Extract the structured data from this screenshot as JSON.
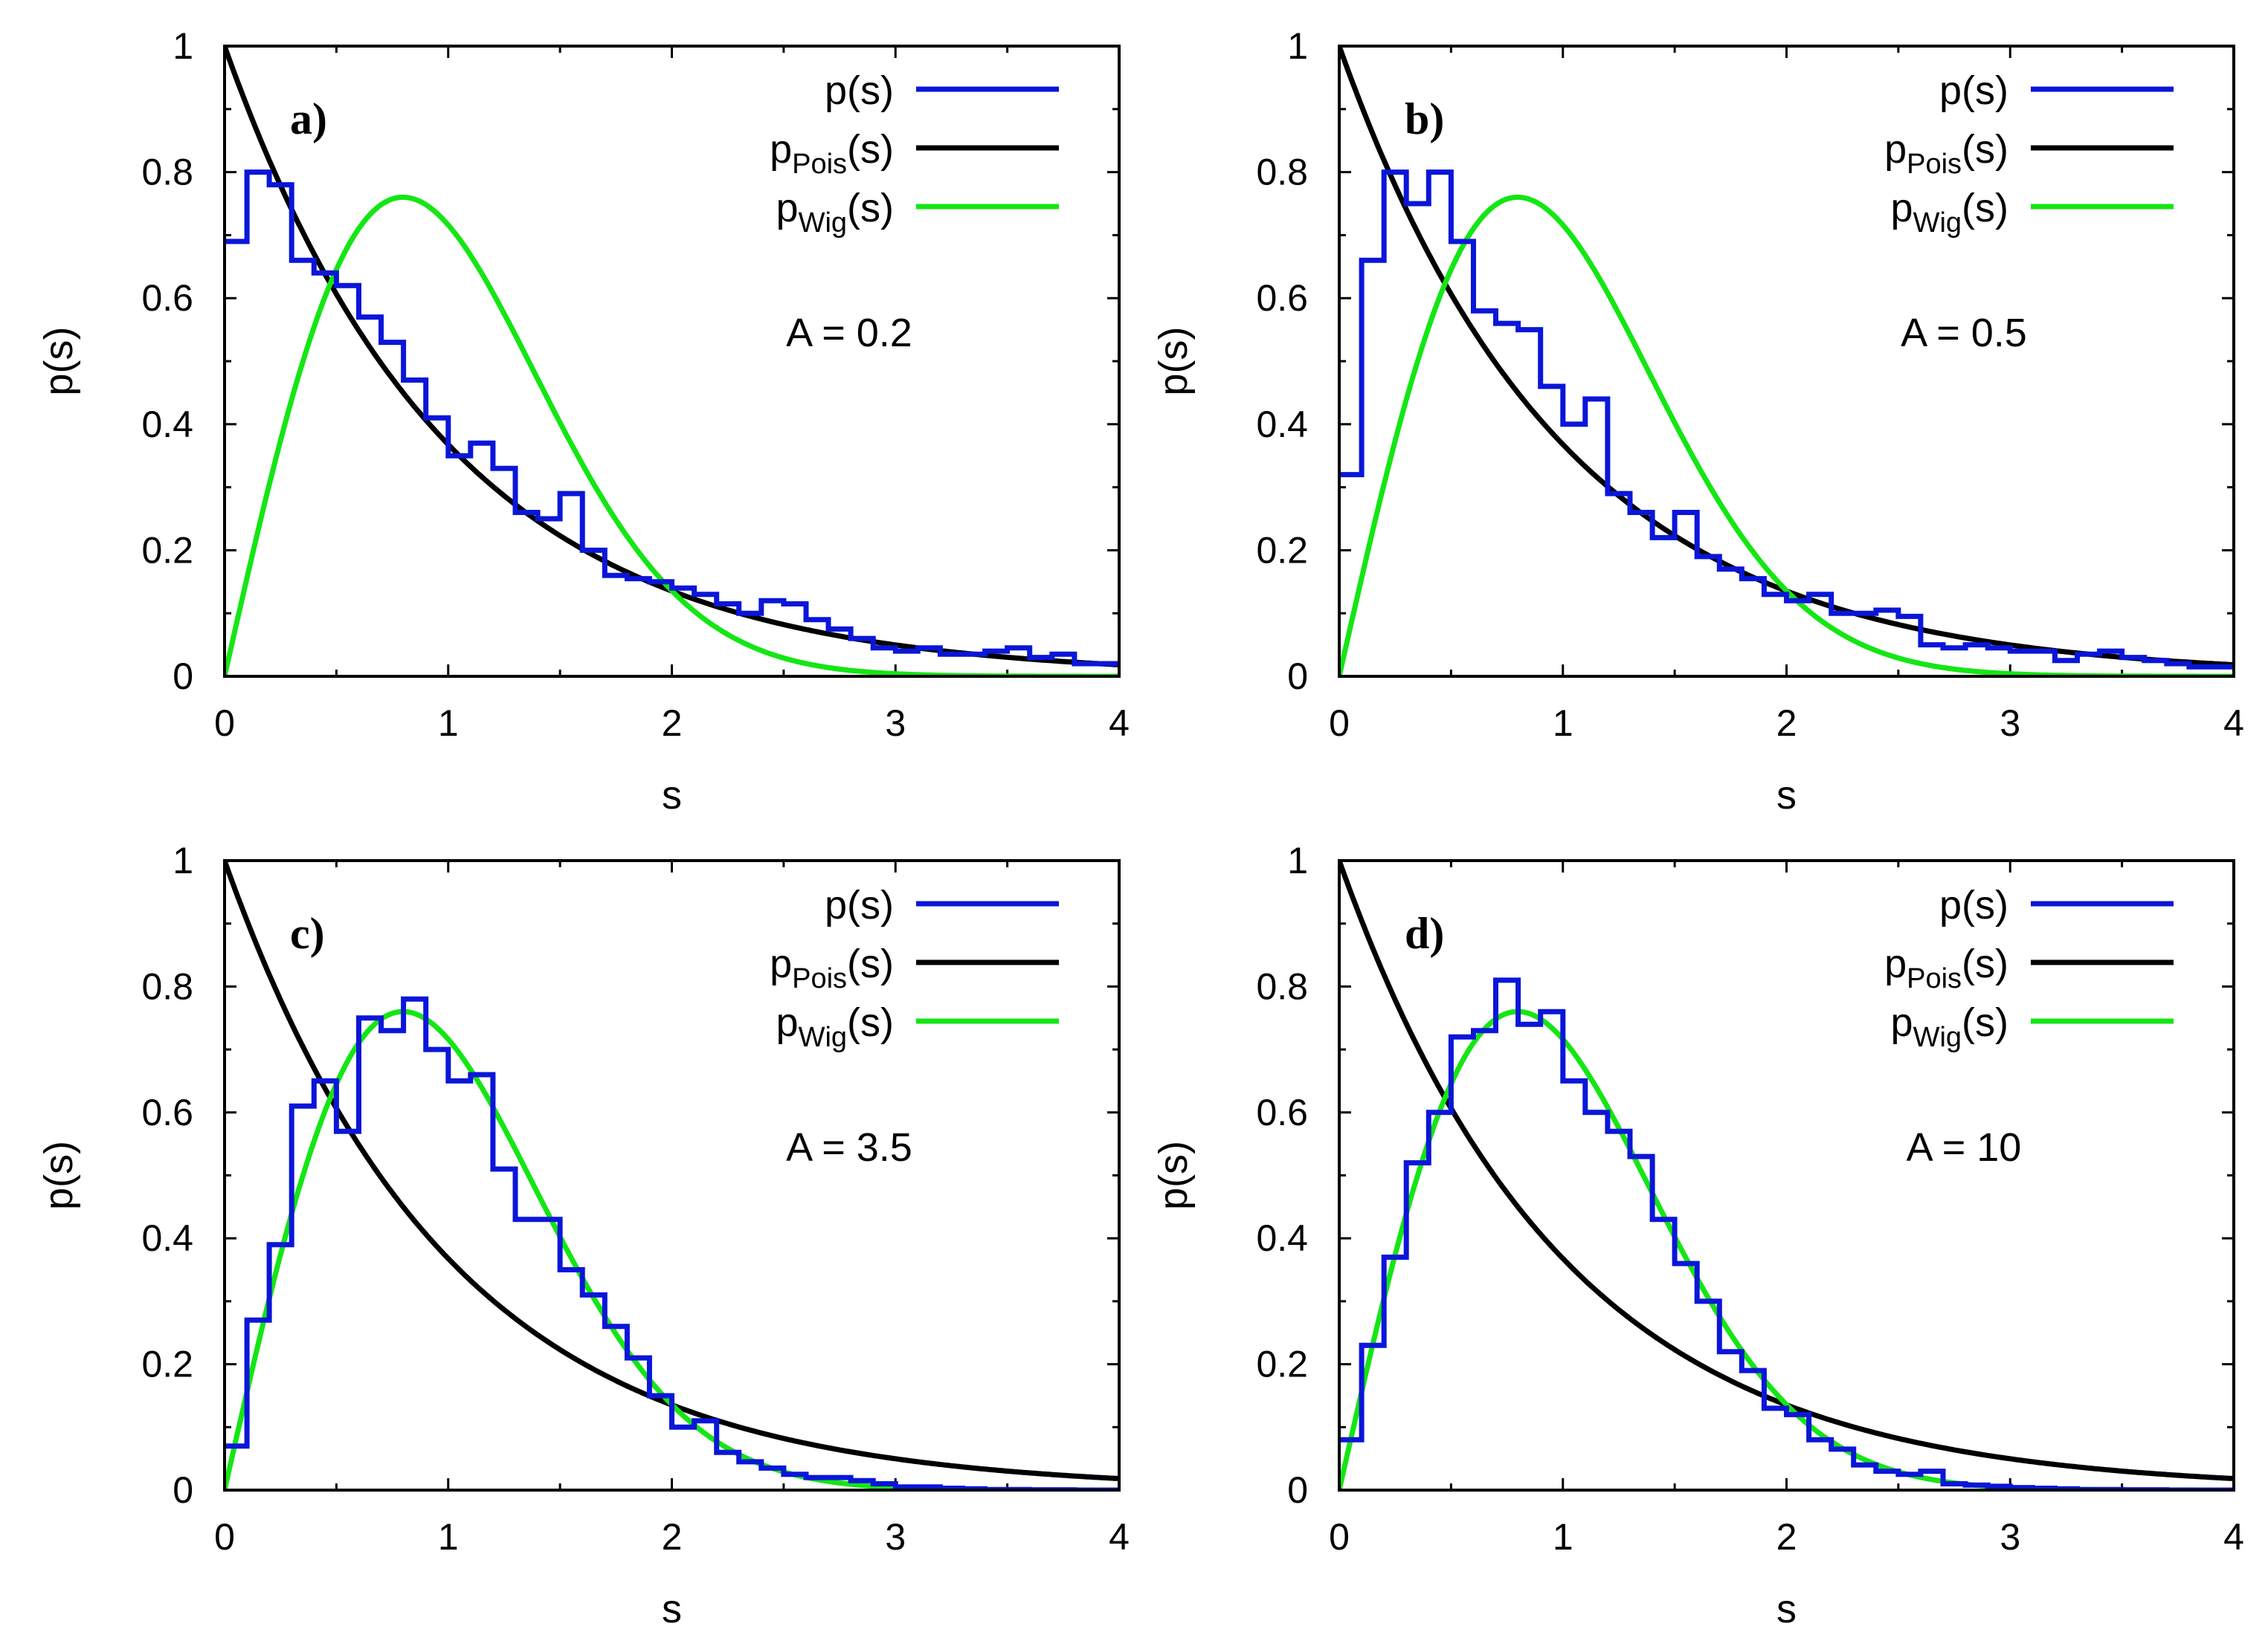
{
  "chart_data": [
    {
      "type": "line",
      "panel_label": "a)",
      "annotation": "A = 0.2",
      "xlabel": "s",
      "ylabel": "p(s)",
      "xlim": [
        0,
        4
      ],
      "ylim": [
        0,
        1
      ],
      "xticks": [
        "0",
        "1",
        "2",
        "3",
        "4"
      ],
      "yticks": [
        "0",
        "0.2",
        "0.4",
        "0.6",
        "0.8",
        "1"
      ],
      "legend": [
        {
          "base": "p(s)",
          "sub": "",
          "tail": ""
        },
        {
          "base": "p",
          "sub": "Pois",
          "tail": "(s)"
        },
        {
          "base": "p",
          "sub": "Wig",
          "tail": "(s)"
        }
      ],
      "histogram": {
        "name": "p(s)",
        "bin_width": 0.1,
        "values": [
          0.69,
          0.8,
          0.78,
          0.66,
          0.64,
          0.62,
          0.57,
          0.53,
          0.47,
          0.41,
          0.35,
          0.37,
          0.33,
          0.26,
          0.25,
          0.29,
          0.2,
          0.16,
          0.155,
          0.15,
          0.14,
          0.13,
          0.115,
          0.1,
          0.12,
          0.115,
          0.09,
          0.075,
          0.06,
          0.045,
          0.04,
          0.045,
          0.035,
          0.035,
          0.04,
          0.045,
          0.03,
          0.035,
          0.02,
          0.02
        ]
      },
      "curves": [
        "Poisson: exp(-s)",
        "Wigner: (pi/2) s exp(-pi s^2/4)"
      ]
    },
    {
      "type": "line",
      "panel_label": "b)",
      "annotation": "A = 0.5",
      "xlabel": "s",
      "ylabel": "p(s)",
      "xlim": [
        0,
        4
      ],
      "ylim": [
        0,
        1
      ],
      "xticks": [
        "0",
        "1",
        "2",
        "3",
        "4"
      ],
      "yticks": [
        "0",
        "0.2",
        "0.4",
        "0.6",
        "0.8",
        "1"
      ],
      "legend": [
        {
          "base": "p(s)",
          "sub": "",
          "tail": ""
        },
        {
          "base": "p",
          "sub": "Pois",
          "tail": "(s)"
        },
        {
          "base": "p",
          "sub": "Wig",
          "tail": "(s)"
        }
      ],
      "histogram": {
        "name": "p(s)",
        "bin_width": 0.1,
        "values": [
          0.32,
          0.66,
          0.8,
          0.75,
          0.8,
          0.69,
          0.58,
          0.56,
          0.55,
          0.46,
          0.4,
          0.44,
          0.29,
          0.26,
          0.22,
          0.26,
          0.19,
          0.17,
          0.155,
          0.13,
          0.12,
          0.13,
          0.1,
          0.1,
          0.105,
          0.095,
          0.05,
          0.045,
          0.05,
          0.045,
          0.04,
          0.04,
          0.025,
          0.035,
          0.04,
          0.03,
          0.025,
          0.02,
          0.015,
          0.015
        ]
      },
      "curves": [
        "Poisson: exp(-s)",
        "Wigner: (pi/2) s exp(-pi s^2/4)"
      ]
    },
    {
      "type": "line",
      "panel_label": "c)",
      "annotation": "A = 3.5",
      "xlabel": "s",
      "ylabel": "p(s)",
      "xlim": [
        0,
        4
      ],
      "ylim": [
        0,
        1
      ],
      "xticks": [
        "0",
        "1",
        "2",
        "3",
        "4"
      ],
      "yticks": [
        "0",
        "0.2",
        "0.4",
        "0.6",
        "0.8",
        "1"
      ],
      "legend": [
        {
          "base": "p(s)",
          "sub": "",
          "tail": ""
        },
        {
          "base": "p",
          "sub": "Pois",
          "tail": "(s)"
        },
        {
          "base": "p",
          "sub": "Wig",
          "tail": "(s)"
        }
      ],
      "histogram": {
        "name": "p(s)",
        "bin_width": 0.1,
        "values": [
          0.07,
          0.27,
          0.39,
          0.61,
          0.65,
          0.57,
          0.75,
          0.73,
          0.78,
          0.7,
          0.65,
          0.66,
          0.51,
          0.43,
          0.43,
          0.35,
          0.31,
          0.26,
          0.21,
          0.15,
          0.1,
          0.11,
          0.06,
          0.045,
          0.035,
          0.025,
          0.02,
          0.02,
          0.015,
          0.01,
          0.005,
          0.005,
          0.003,
          0.002,
          0.001,
          0.001,
          0.0005,
          0.0005,
          0.0,
          0.0
        ]
      },
      "curves": [
        "Poisson: exp(-s)",
        "Wigner: (pi/2) s exp(-pi s^2/4)"
      ]
    },
    {
      "type": "line",
      "panel_label": "d)",
      "annotation": "A = 10",
      "xlabel": "s",
      "ylabel": "p(s)",
      "xlim": [
        0,
        4
      ],
      "ylim": [
        0,
        1
      ],
      "xticks": [
        "0",
        "1",
        "2",
        "3",
        "4"
      ],
      "yticks": [
        "0",
        "0.2",
        "0.4",
        "0.6",
        "0.8",
        "1"
      ],
      "legend": [
        {
          "base": "p(s)",
          "sub": "",
          "tail": ""
        },
        {
          "base": "p",
          "sub": "Pois",
          "tail": "(s)"
        },
        {
          "base": "p",
          "sub": "Wig",
          "tail": "(s)"
        }
      ],
      "histogram": {
        "name": "p(s)",
        "bin_width": 0.1,
        "values": [
          0.08,
          0.23,
          0.37,
          0.52,
          0.6,
          0.72,
          0.73,
          0.81,
          0.74,
          0.76,
          0.65,
          0.6,
          0.57,
          0.53,
          0.43,
          0.36,
          0.3,
          0.22,
          0.19,
          0.13,
          0.12,
          0.08,
          0.065,
          0.04,
          0.03,
          0.025,
          0.03,
          0.01,
          0.008,
          0.006,
          0.004,
          0.003,
          0.002,
          0.001,
          0.001,
          0.0005,
          0.0005,
          0.0,
          0.0,
          0.0
        ]
      },
      "curves": [
        "Poisson: exp(-s)",
        "Wigner: (pi/2) s exp(-pi s^2/4)"
      ]
    }
  ],
  "colors": {
    "histogram": "#0a16d8",
    "poisson": "#000000",
    "wigner": "#14e614",
    "axes": "#000000"
  }
}
